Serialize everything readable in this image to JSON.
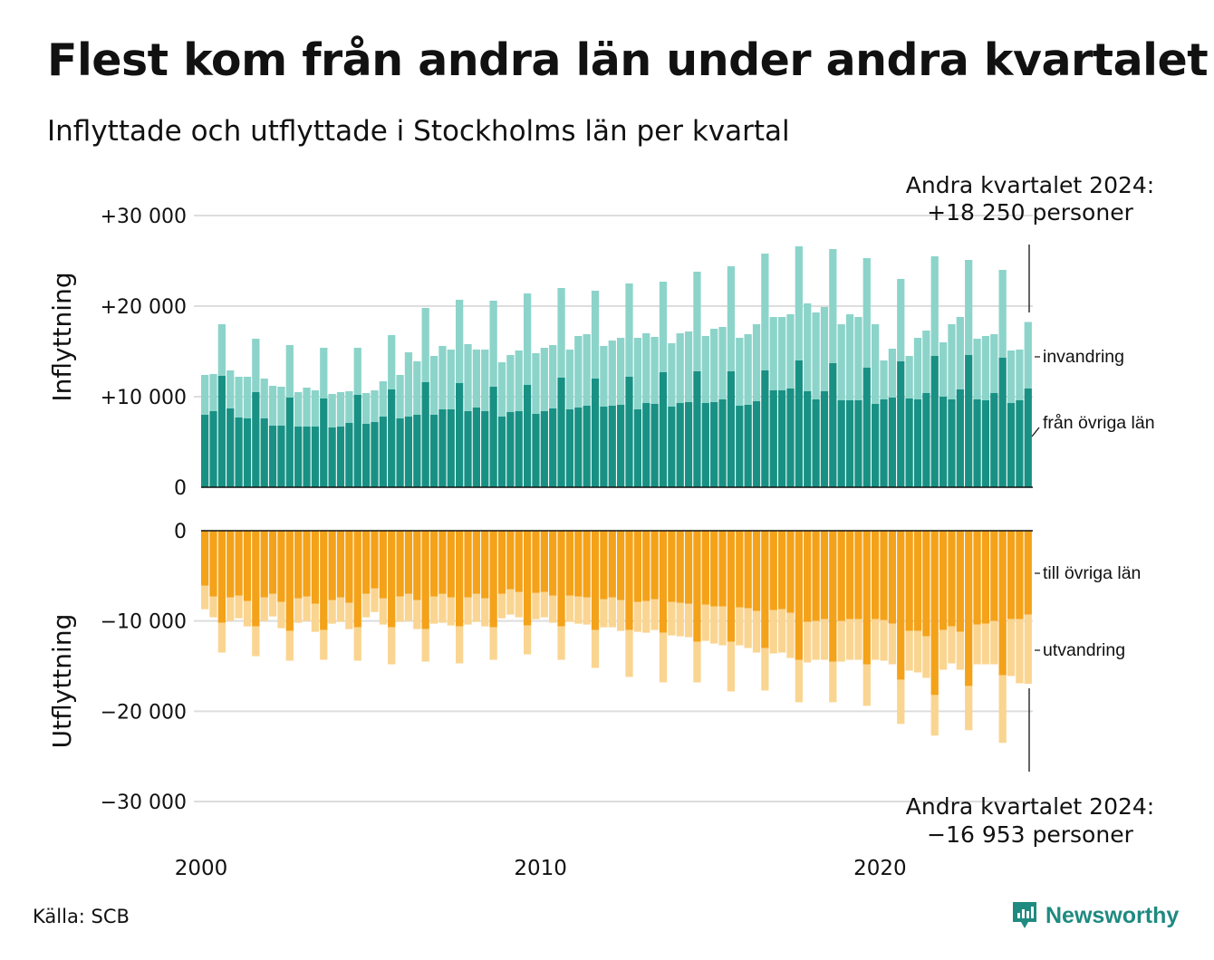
{
  "title": "Flest kom från andra län under andra kvartalet",
  "subtitle": "Inflyttade och utflyttade i Stockholms län per kvartal",
  "source": "Källa: SCB",
  "brand": "Newsworthy",
  "colors": {
    "fran_ovriga_lan": "#189184",
    "invandring": "#8cd4ca",
    "till_ovriga_lan": "#f4a219",
    "utvandring": "#fad591",
    "grid": "#dddddd"
  },
  "annotations": {
    "top_line1": "Andra kvartalet 2024:",
    "top_line2": "+18 250 personer",
    "bottom_line1": "Andra kvartalet 2024:",
    "bottom_line2": "−16 953 personer"
  },
  "chart_data": [
    {
      "type": "bar",
      "stacked": true,
      "panel": "upper",
      "ylabel": "Inflyttning",
      "ylim": [
        0,
        30000
      ],
      "yticks": [
        0,
        10000,
        20000,
        30000
      ],
      "ytick_labels": [
        "0",
        "+10 000",
        "+20 000",
        "+30 000"
      ],
      "xticks": [
        2000,
        2010,
        2020
      ],
      "x_start": "2000-Q1",
      "series": [
        {
          "name": "från övriga län",
          "values": [
            8000,
            8400,
            12300,
            8700,
            7700,
            7600,
            10500,
            7600,
            6800,
            6800,
            9900,
            6700,
            6700,
            6700,
            9800,
            6600,
            6700,
            7100,
            10200,
            7000,
            7200,
            7800,
            10800,
            7600,
            7800,
            8000,
            11600,
            8000,
            8600,
            8600,
            11500,
            8400,
            8800,
            8400,
            11100,
            7800,
            8300,
            8400,
            11300,
            8100,
            8400,
            8700,
            12100,
            8600,
            8800,
            9000,
            12000,
            8900,
            9000,
            9100,
            12200,
            8600,
            9300,
            9200,
            12700,
            8900,
            9300,
            9400,
            12800,
            9300,
            9400,
            9700,
            12800,
            9000,
            9100,
            9500,
            12900,
            10700,
            10700,
            10900,
            14000,
            10600,
            9700,
            10600,
            13700,
            9600,
            9600,
            9600,
            13200,
            9200,
            9700,
            9900,
            13900,
            9800,
            9700,
            10400,
            14500,
            10000,
            9700,
            10800,
            14600,
            9700,
            9600,
            10400,
            14300,
            9300,
            9600,
            10900
          ]
        },
        {
          "name": "invandring",
          "values": [
            4400,
            4100,
            5700,
            4200,
            4500,
            4600,
            5900,
            4400,
            4400,
            4300,
            5800,
            3800,
            4300,
            4000,
            5600,
            3700,
            3800,
            3500,
            5200,
            3400,
            3500,
            3900,
            6000,
            4800,
            7100,
            5900,
            8200,
            6500,
            7000,
            6600,
            9200,
            7400,
            6400,
            6800,
            9500,
            6000,
            6300,
            6700,
            10100,
            6700,
            7000,
            7000,
            9900,
            6600,
            7900,
            7900,
            9700,
            6700,
            7200,
            7400,
            10300,
            7900,
            7700,
            7400,
            10000,
            7000,
            7700,
            7800,
            11000,
            7400,
            8100,
            8000,
            11600,
            7500,
            7800,
            8500,
            12900,
            8100,
            8100,
            8200,
            12600,
            9700,
            9600,
            9300,
            12600,
            8400,
            9500,
            9200,
            12100,
            8800,
            4300,
            5400,
            9100,
            4700,
            6800,
            6900,
            11000,
            6000,
            8300,
            8000,
            10500,
            6700,
            7100,
            6500,
            9700,
            5800,
            5600,
            7350
          ]
        }
      ]
    },
    {
      "type": "bar",
      "stacked": true,
      "panel": "lower",
      "ylabel": "Utflyttning",
      "ylim": [
        -30000,
        0
      ],
      "yticks": [
        0,
        -10000,
        -20000,
        -30000
      ],
      "ytick_labels": [
        "0",
        "−10 000",
        "−20 000",
        "−30 000"
      ],
      "xticks": [
        2000,
        2010,
        2020
      ],
      "x_start": "2000-Q1",
      "series": [
        {
          "name": "till övriga län",
          "values": [
            -6100,
            -7300,
            -10200,
            -7400,
            -7200,
            -7800,
            -10600,
            -7400,
            -7000,
            -7900,
            -11100,
            -7500,
            -7300,
            -8100,
            -11000,
            -7700,
            -7400,
            -8000,
            -10700,
            -7000,
            -6400,
            -7500,
            -10700,
            -7300,
            -7000,
            -7700,
            -10900,
            -7300,
            -7000,
            -7400,
            -10600,
            -7400,
            -7000,
            -7500,
            -10700,
            -7000,
            -6500,
            -6800,
            -10500,
            -6900,
            -6800,
            -7200,
            -10600,
            -7200,
            -7300,
            -7400,
            -11000,
            -7600,
            -7400,
            -7700,
            -11000,
            -7900,
            -7800,
            -7600,
            -11300,
            -7900,
            -8000,
            -8100,
            -12300,
            -8200,
            -8400,
            -8400,
            -12300,
            -8500,
            -8600,
            -8900,
            -13000,
            -8800,
            -8700,
            -9100,
            -14300,
            -10100,
            -10000,
            -9800,
            -14500,
            -10000,
            -9800,
            -9800,
            -14800,
            -9800,
            -9900,
            -10300,
            -16500,
            -11100,
            -11100,
            -11700,
            -18200,
            -11000,
            -10600,
            -11200,
            -17200,
            -10400,
            -10300,
            -10000,
            -16000,
            -9800,
            -9800,
            -9300
          ]
        },
        {
          "name": "utvandring",
          "values": [
            -2600,
            -2300,
            -3300,
            -2600,
            -2500,
            -2800,
            -3300,
            -2600,
            -2500,
            -2900,
            -3300,
            -2700,
            -2700,
            -3100,
            -3300,
            -2600,
            -2700,
            -2900,
            -3700,
            -2600,
            -2600,
            -2900,
            -4100,
            -2800,
            -3000,
            -3200,
            -3600,
            -3000,
            -3200,
            -3100,
            -4100,
            -3000,
            -3100,
            -3100,
            -3600,
            -2700,
            -2800,
            -2800,
            -3200,
            -2900,
            -2800,
            -3000,
            -3700,
            -2900,
            -3000,
            -3000,
            -4200,
            -3100,
            -3300,
            -3400,
            -5200,
            -3300,
            -3500,
            -3400,
            -5500,
            -3700,
            -3700,
            -3700,
            -4500,
            -4000,
            -4100,
            -4300,
            -5500,
            -4200,
            -4400,
            -4600,
            -4700,
            -4800,
            -4800,
            -5000,
            -4700,
            -4500,
            -4300,
            -4500,
            -4500,
            -4500,
            -4500,
            -4500,
            -4600,
            -4500,
            -4500,
            -4500,
            -4900,
            -4400,
            -4600,
            -4600,
            -4500,
            -4400,
            -4100,
            -4200,
            -4900,
            -4400,
            -4500,
            -4800,
            -7500,
            -6300,
            -7100,
            -7653
          ]
        }
      ]
    }
  ]
}
